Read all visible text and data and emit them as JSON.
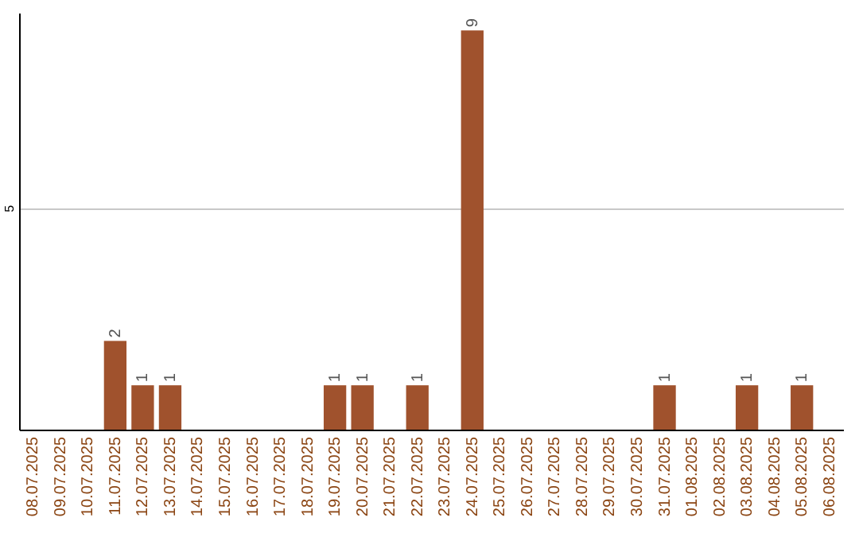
{
  "chart_data": {
    "type": "bar",
    "categories": [
      "08.07.2025",
      "09.07.2025",
      "10.07.2025",
      "11.07.2025",
      "12.07.2025",
      "13.07.2025",
      "14.07.2025",
      "15.07.2025",
      "16.07.2025",
      "17.07.2025",
      "18.07.2025",
      "19.07.2025",
      "20.07.2025",
      "21.07.2025",
      "22.07.2025",
      "23.07.2025",
      "24.07.2025",
      "25.07.2025",
      "26.07.2025",
      "27.07.2025",
      "28.07.2025",
      "29.07.2025",
      "30.07.2025",
      "31.07.2025",
      "01.08.2025",
      "02.08.2025",
      "03.08.2025",
      "04.08.2025",
      "05.08.2025",
      "06.08.2025"
    ],
    "values": [
      0,
      0,
      0,
      2,
      1,
      1,
      0,
      0,
      0,
      0,
      0,
      1,
      1,
      0,
      1,
      0,
      9,
      0,
      0,
      0,
      0,
      0,
      0,
      1,
      0,
      0,
      1,
      0,
      1,
      0
    ],
    "value_labels": [
      null,
      null,
      null,
      "2",
      "1",
      "1",
      null,
      null,
      null,
      null,
      null,
      "1",
      "1",
      null,
      "1",
      null,
      "9",
      null,
      null,
      null,
      null,
      null,
      null,
      "1",
      null,
      null,
      "1",
      null,
      "1",
      null
    ],
    "color": "#a0522d",
    "ylim": [
      0,
      9.4
    ],
    "yticks": [
      {
        "value": 0,
        "label": null
      },
      5
    ],
    "grid": "y"
  }
}
